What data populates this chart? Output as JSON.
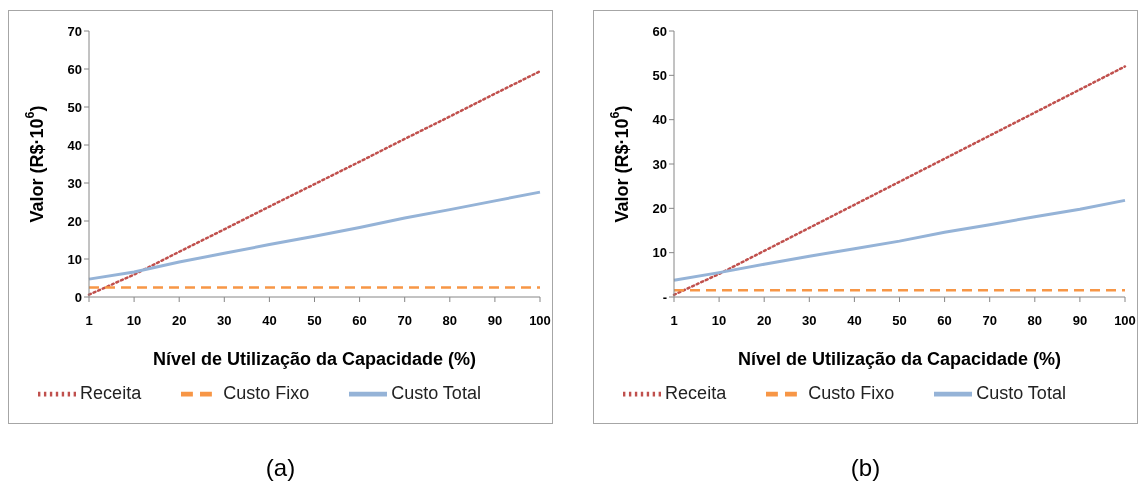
{
  "chart_data": [
    {
      "type": "line",
      "xlabel": "Nível de Utilização da Capacidade  (%)",
      "ylabel": "Valor (R$·10$^{6}$)",
      "annotations": [
        "(a)"
      ],
      "categories": [
        "1",
        "10",
        "20",
        "30",
        "40",
        "50",
        "60",
        "70",
        "80",
        "90",
        "100"
      ],
      "series": [
        {
          "name": "Receita",
          "color": "#c0504d",
          "line_style": "dotted",
          "values": [
            0.6,
            5.9,
            11.9,
            17.8,
            23.8,
            29.7,
            35.6,
            41.6,
            47.5,
            53.5,
            59.4
          ]
        },
        {
          "name": "Custo Fixo",
          "color": "#f79646",
          "line_style": "dashed",
          "values": [
            2.5,
            2.5,
            2.5,
            2.5,
            2.5,
            2.5,
            2.5,
            2.5,
            2.5,
            2.5,
            2.5
          ]
        },
        {
          "name": "Custo Total",
          "color": "#95b3d7",
          "line_style": "solid",
          "values": [
            4.7,
            6.6,
            9.2,
            11.5,
            13.8,
            16,
            18.3,
            20.8,
            23,
            25.3,
            27.6
          ]
        }
      ],
      "ylim": [
        0,
        70
      ],
      "yticks": [
        0,
        10,
        20,
        30,
        40,
        50,
        60,
        70
      ],
      "grid": false,
      "legend": "bottom",
      "marker": "none"
    },
    {
      "type": "line",
      "xlabel": "Nível de Utilização da Capacidade  (%)",
      "ylabel": "Valor (R$·10$^{6}$)",
      "annotations": [
        "(b)"
      ],
      "categories": [
        "1",
        "10",
        "20",
        "30",
        "40",
        "50",
        "60",
        "70",
        "80",
        "90",
        "100"
      ],
      "series": [
        {
          "name": "Receita",
          "color": "#c0504d",
          "line_style": "dotted",
          "values": [
            0.5,
            5.2,
            10.4,
            15.6,
            20.8,
            26,
            31.2,
            36.4,
            41.6,
            46.8,
            52
          ]
        },
        {
          "name": "Custo Fixo",
          "color": "#f79646",
          "line_style": "dashed",
          "values": [
            1.5,
            1.5,
            1.5,
            1.5,
            1.5,
            1.5,
            1.5,
            1.5,
            1.5,
            1.5,
            1.5
          ]
        },
        {
          "name": "Custo Total",
          "color": "#95b3d7",
          "line_style": "solid",
          "values": [
            3.8,
            5.5,
            7.4,
            9.2,
            10.9,
            12.6,
            14.6,
            16.3,
            18.1,
            19.8,
            21.8
          ]
        }
      ],
      "ylim": [
        0,
        60
      ],
      "yticks": [
        {
          "value": 0,
          "label": "-"
        },
        10,
        20,
        30,
        40,
        50,
        60
      ],
      "grid": false,
      "legend": "bottom",
      "marker": "none"
    }
  ]
}
